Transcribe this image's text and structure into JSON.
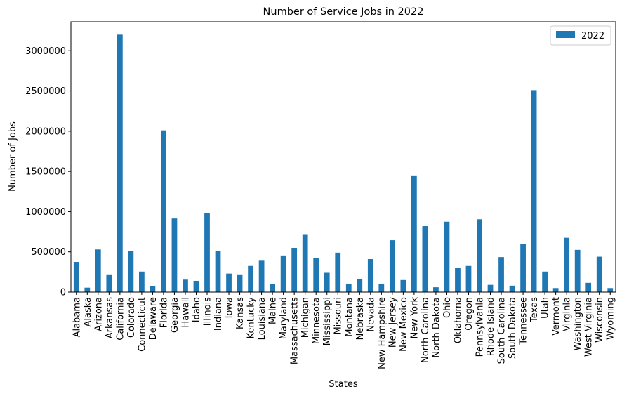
{
  "chart_data": {
    "type": "bar",
    "title": "Number of Service Jobs in 2022",
    "xlabel": "States",
    "ylabel": "Number of Jobs",
    "ylim": [
      0,
      3360000
    ],
    "yticks": [
      0,
      500000,
      1000000,
      1500000,
      2000000,
      2500000,
      3000000
    ],
    "ytick_labels": [
      "0",
      "500000",
      "1000000",
      "1500000",
      "2000000",
      "2500000",
      "3000000"
    ],
    "legend_position": "top-right",
    "grid": false,
    "bar_color": "#1f77b4",
    "categories": [
      "Alabama",
      "Alaska",
      "Arizona",
      "Arkansas",
      "California",
      "Colorado",
      "Connecticut",
      "Delaware",
      "Florida",
      "Georgia",
      "Hawaii",
      "Idaho",
      "Illinois",
      "Indiana",
      "Iowa",
      "Kansas",
      "Kentucky",
      "Louisiana",
      "Maine",
      "Maryland",
      "Massachusetts",
      "Michigan",
      "Minnesota",
      "Mississippi",
      "Missouri",
      "Montana",
      "Nebraska",
      "Nevada",
      "New Hampshire",
      "New Jersey",
      "New Mexico",
      "New York",
      "North Carolina",
      "North Dakota",
      "Ohio",
      "Oklahoma",
      "Oregon",
      "Pennsylvania",
      "Rhode Island",
      "South Carolina",
      "South Dakota",
      "Tennessee",
      "Texas",
      "Utah",
      "Vermont",
      "Virginia",
      "Washington",
      "West Virginia",
      "Wisconsin",
      "Wyoming"
    ],
    "series": [
      {
        "name": "2022",
        "color": "#1f77b4",
        "values": [
          375000,
          55000,
          530000,
          220000,
          3200000,
          510000,
          255000,
          70000,
          2010000,
          915000,
          155000,
          140000,
          985000,
          515000,
          230000,
          220000,
          325000,
          390000,
          105000,
          455000,
          550000,
          720000,
          420000,
          240000,
          490000,
          105000,
          160000,
          410000,
          105000,
          645000,
          150000,
          1450000,
          820000,
          60000,
          875000,
          305000,
          325000,
          905000,
          90000,
          435000,
          80000,
          600000,
          2510000,
          255000,
          50000,
          675000,
          525000,
          115000,
          440000,
          50000
        ]
      }
    ]
  }
}
